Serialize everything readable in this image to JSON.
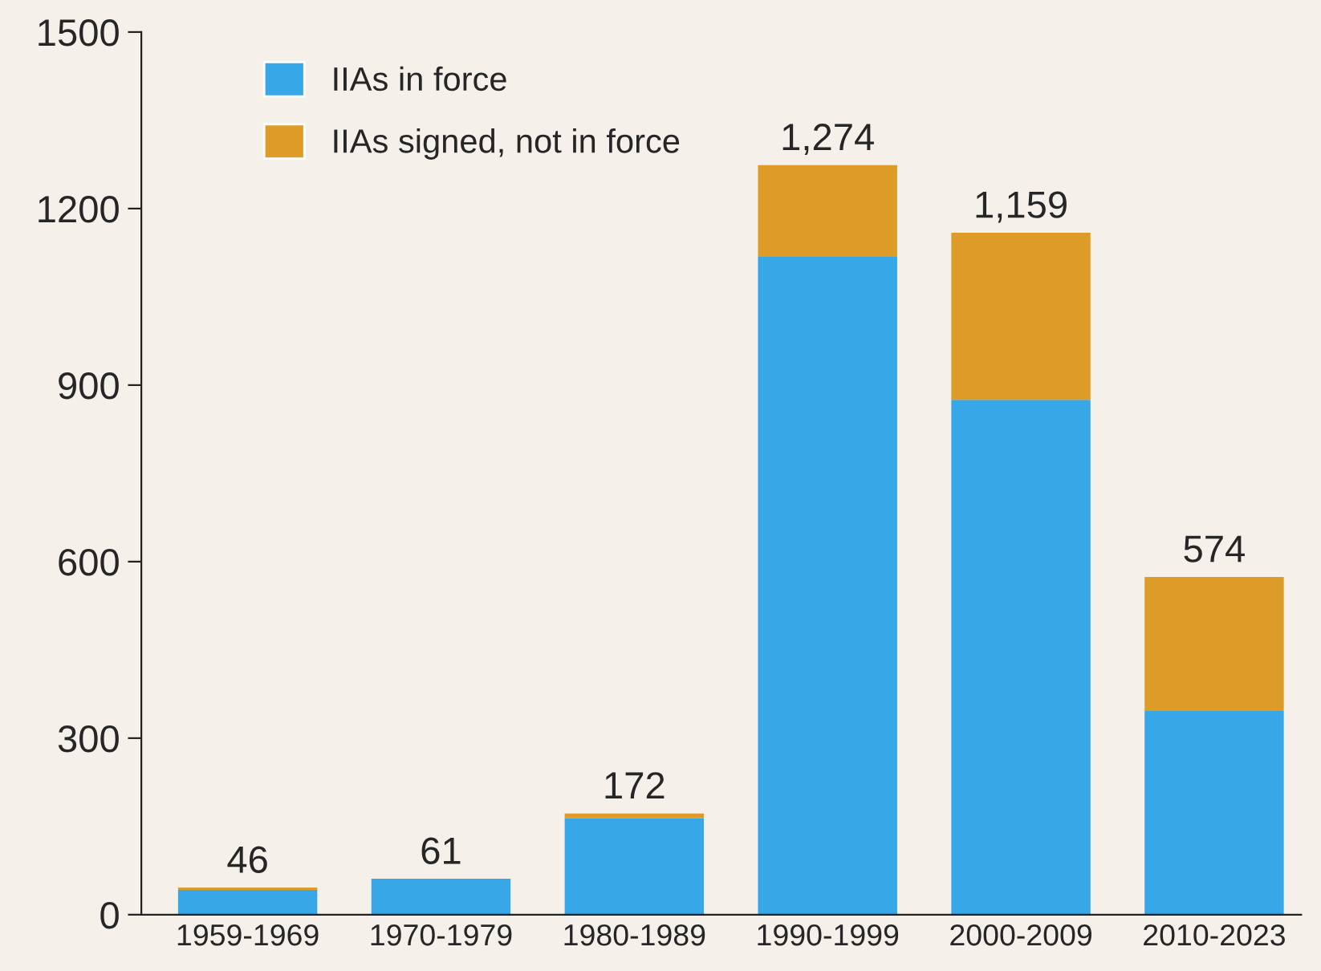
{
  "chart_data": {
    "type": "bar",
    "stacked": true,
    "categories": [
      "1959-1969",
      "1970-1979",
      "1980-1989",
      "1990-1999",
      "2000-2009",
      "2010-2023"
    ],
    "series": [
      {
        "name": "IIAs in force",
        "color": "#37a7e8",
        "values": [
          42,
          61,
          164,
          1118,
          875,
          346
        ]
      },
      {
        "name": "IIAs signed, not in force",
        "color": "#dd9b27",
        "values": [
          4,
          0,
          8,
          156,
          284,
          228
        ]
      }
    ],
    "totals": [
      "46",
      "61",
      "172",
      "1,274",
      "1,159",
      "574"
    ],
    "ylim": [
      0,
      1500
    ],
    "yticks": [
      0,
      300,
      600,
      900,
      1200,
      1500
    ],
    "grid": false,
    "legend": "top left"
  }
}
